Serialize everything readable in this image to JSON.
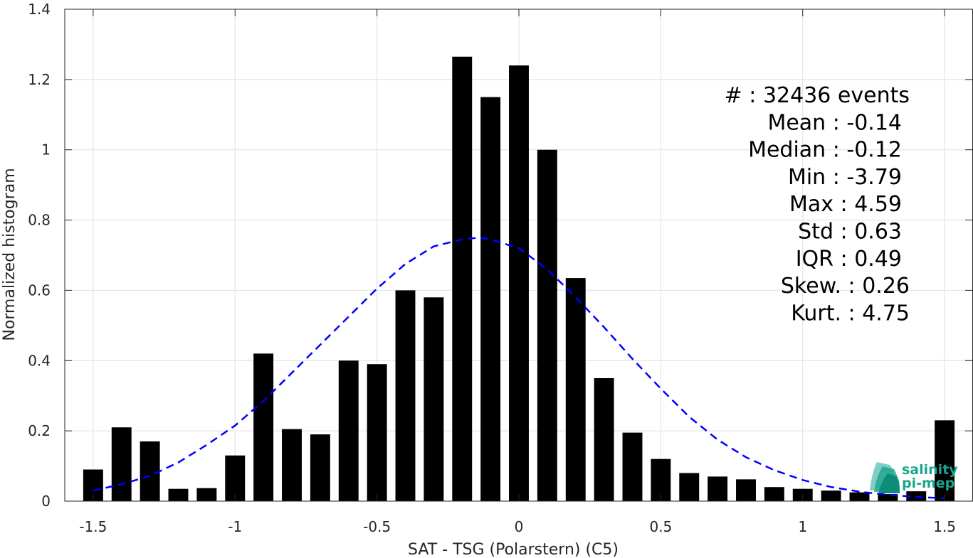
{
  "chart_data": {
    "type": "bar",
    "title": "",
    "xlabel": "SAT - TSG (Polarstern) (C5)",
    "ylabel": "Normalized histogram",
    "xlim": [
      -1.6,
      1.6
    ],
    "ylim": [
      0,
      1.4
    ],
    "xticks": [
      -1.5,
      -1,
      -0.5,
      0,
      0.5,
      1,
      1.5
    ],
    "xtick_labels": [
      "-1.5",
      "-1",
      "-0.5",
      "0",
      "0.5",
      "1",
      "1.5"
    ],
    "yticks": [
      0,
      0.2,
      0.4,
      0.6,
      0.8,
      1,
      1.2,
      1.4
    ],
    "ytick_labels": [
      "0",
      "0.2",
      "0.4",
      "0.6",
      "0.8",
      "1",
      "1.2",
      "1.4"
    ],
    "grid": true,
    "bar_width": 0.07,
    "bar_color": "#000000",
    "x": [
      -1.5,
      -1.4,
      -1.3,
      -1.2,
      -1.1,
      -1.0,
      -0.9,
      -0.8,
      -0.7,
      -0.6,
      -0.5,
      -0.4,
      -0.3,
      -0.2,
      -0.1,
      0.0,
      0.1,
      0.2,
      0.3,
      0.4,
      0.5,
      0.6,
      0.7,
      0.8,
      0.9,
      1.0,
      1.1,
      1.2,
      1.3,
      1.4,
      1.5
    ],
    "values": [
      0.09,
      0.21,
      0.17,
      0.035,
      0.037,
      0.13,
      0.42,
      0.205,
      0.19,
      0.4,
      0.39,
      0.6,
      0.58,
      1.265,
      1.15,
      1.24,
      1.0,
      0.635,
      0.35,
      0.195,
      0.12,
      0.08,
      0.07,
      0.062,
      0.04,
      0.035,
      0.03,
      0.025,
      0.02,
      0.028,
      0.23
    ],
    "fit_curve": {
      "style": "dashed",
      "color": "#0000ff",
      "x": [
        -1.5,
        -1.4,
        -1.3,
        -1.2,
        -1.1,
        -1.0,
        -0.9,
        -0.8,
        -0.7,
        -0.6,
        -0.5,
        -0.4,
        -0.3,
        -0.2,
        -0.14,
        -0.1,
        0.0,
        0.1,
        0.2,
        0.3,
        0.4,
        0.5,
        0.6,
        0.7,
        0.8,
        0.9,
        1.0,
        1.1,
        1.2,
        1.3,
        1.4,
        1.5
      ],
      "y": [
        0.03,
        0.048,
        0.072,
        0.11,
        0.16,
        0.215,
        0.285,
        0.365,
        0.445,
        0.525,
        0.605,
        0.675,
        0.725,
        0.745,
        0.75,
        0.745,
        0.72,
        0.66,
        0.58,
        0.495,
        0.405,
        0.32,
        0.24,
        0.175,
        0.125,
        0.088,
        0.06,
        0.04,
        0.027,
        0.018,
        0.012,
        0.008
      ]
    },
    "stats": [
      "#  : 32436 events",
      "Mean : -0.14",
      "Median : -0.12",
      "Min : -3.79",
      "Max : 4.59",
      "Std : 0.63",
      "IQR : 0.49",
      "Skew. : 0.26",
      "Kurt. : 4.75"
    ]
  },
  "logo": {
    "line1": "salinity",
    "line2": "pi-mep",
    "color": "#1aa58f"
  }
}
